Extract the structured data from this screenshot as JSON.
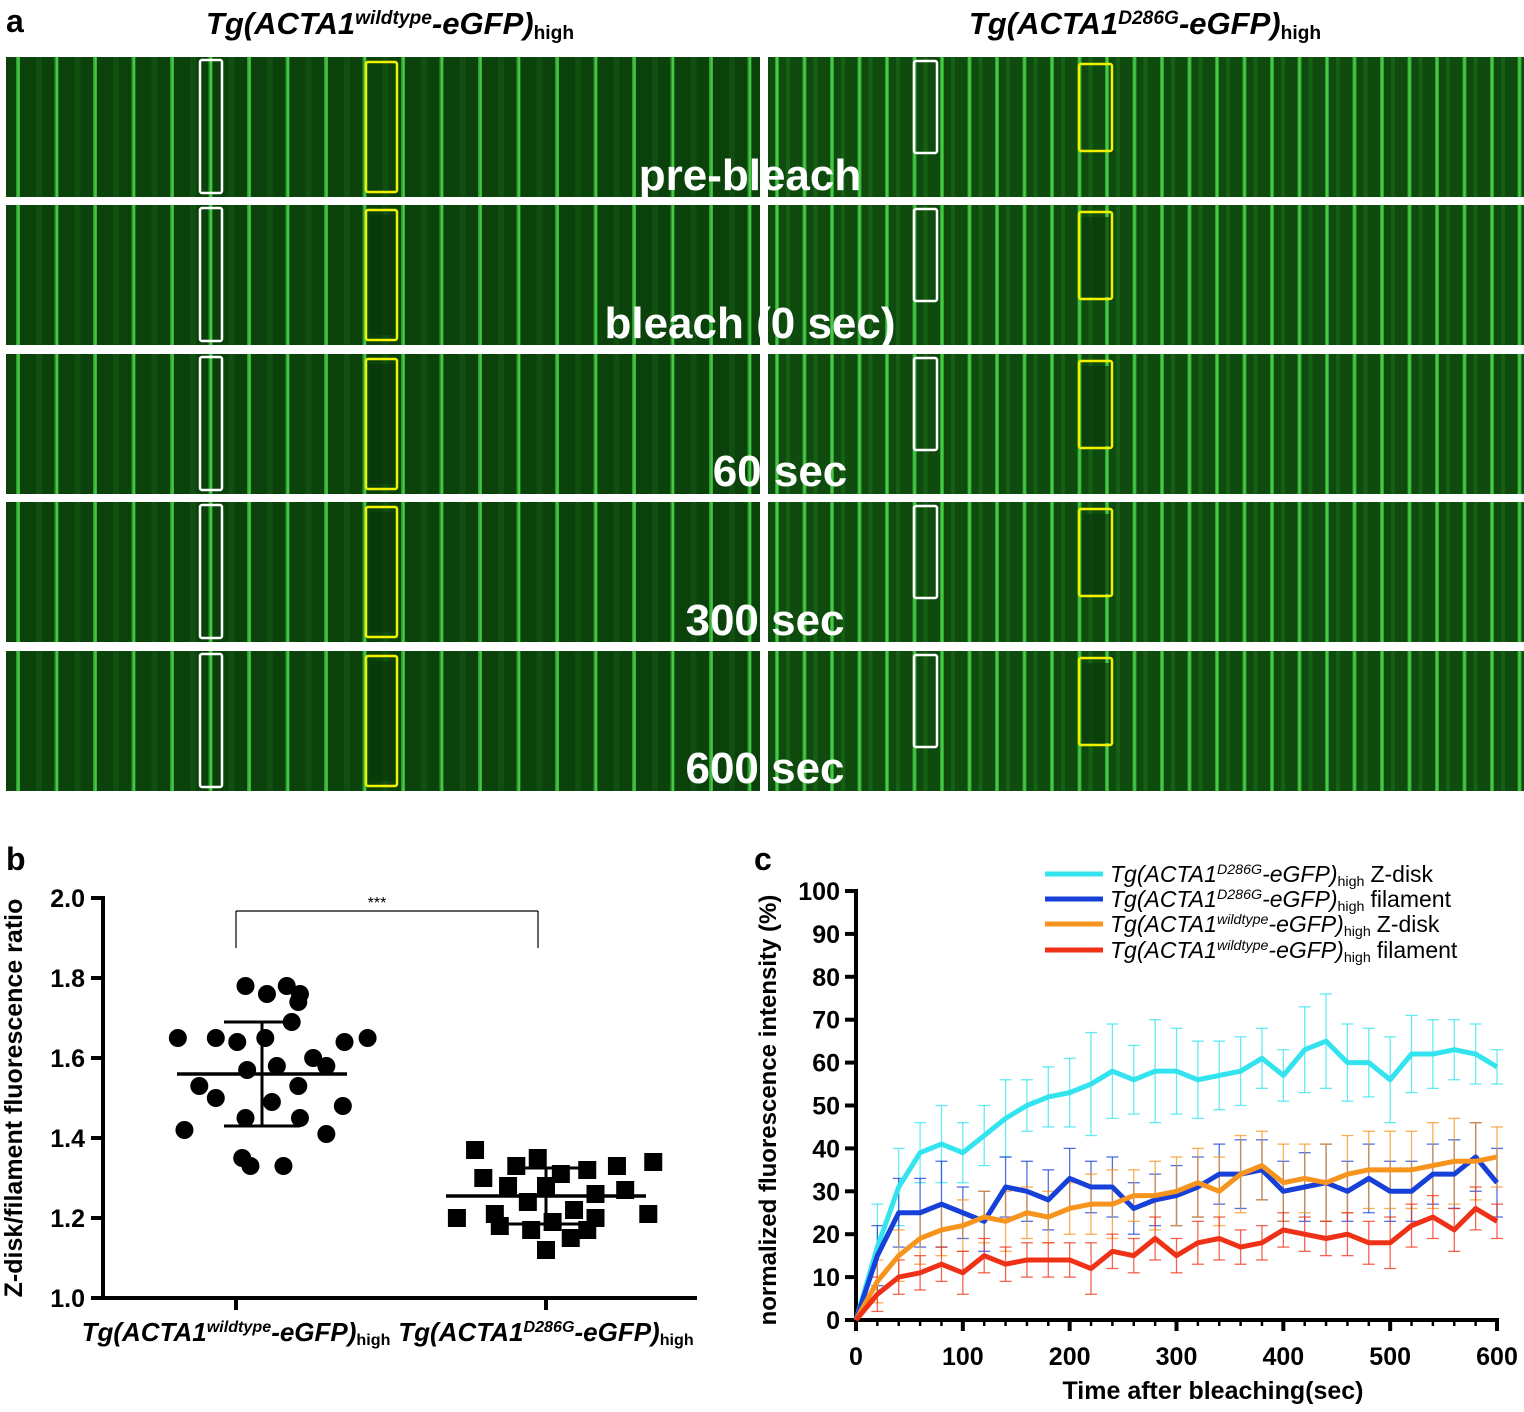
{
  "panel_a": {
    "label": "a",
    "columns": [
      {
        "prefix": "Tg(ACTA1",
        "sup": "wildtype",
        "suffix": "-eGFP)",
        "sub": "high"
      },
      {
        "prefix": "Tg(ACTA1",
        "sup": "D286G",
        "suffix": "-eGFP)",
        "sub": "high"
      }
    ],
    "rows": [
      "pre-bleach",
      "bleach (0 sec)",
      "60 sec",
      "300 sec",
      "600 sec"
    ],
    "colors": {
      "background": "#0a3f0a",
      "stripe": "#3bc23b",
      "roi_white": "#ffffff",
      "roi_yellow": "#f2f200"
    }
  },
  "panel_b": {
    "label": "b",
    "ylabel": "Z-disk/filament fluorescence ratio",
    "significance": "***",
    "chart_data": {
      "type": "scatter",
      "ylim": [
        1.0,
        2.0
      ],
      "yticks": [
        "1.0",
        "1.2",
        "1.4",
        "1.6",
        "1.8",
        "2.0"
      ],
      "categories": [
        {
          "prefix": "Tg(ACTA1",
          "sup": "wildtype",
          "suffix": "-eGFP)",
          "sub": "high"
        },
        {
          "prefix": "Tg(ACTA1",
          "sup": "D286G",
          "suffix": "-eGFP)",
          "sub": "high"
        }
      ],
      "series": [
        {
          "marker": "circle",
          "mean": 1.56,
          "sd": 0.13,
          "points": [
            [
              1.78,
              -0.1
            ],
            [
              1.78,
              0.15
            ],
            [
              1.76,
              0.03
            ],
            [
              1.76,
              0.23
            ],
            [
              1.74,
              0.22
            ],
            [
              1.69,
              0.18
            ],
            [
              1.65,
              -0.51
            ],
            [
              1.65,
              -0.28
            ],
            [
              1.65,
              0.02
            ],
            [
              1.65,
              0.64
            ],
            [
              1.64,
              -0.15
            ],
            [
              1.64,
              0.5
            ],
            [
              1.6,
              0.31
            ],
            [
              1.58,
              0.09
            ],
            [
              1.58,
              0.39
            ],
            [
              1.57,
              -0.09
            ],
            [
              1.53,
              -0.38
            ],
            [
              1.53,
              0.22
            ],
            [
              1.5,
              -0.28
            ],
            [
              1.49,
              0.06
            ],
            [
              1.48,
              0.49
            ],
            [
              1.45,
              -0.1
            ],
            [
              1.45,
              0.23
            ],
            [
              1.42,
              -0.47
            ],
            [
              1.41,
              0.39
            ],
            [
              1.35,
              -0.12
            ],
            [
              1.33,
              -0.07
            ],
            [
              1.33,
              0.13
            ]
          ]
        },
        {
          "marker": "square",
          "mean": 1.255,
          "sd": 0.07,
          "points": [
            [
              1.37,
              -0.43
            ],
            [
              1.35,
              -0.05
            ],
            [
              1.34,
              0.65
            ],
            [
              1.33,
              0.43
            ],
            [
              1.33,
              -0.18
            ],
            [
              1.32,
              0.25
            ],
            [
              1.31,
              0.09
            ],
            [
              1.3,
              -0.38
            ],
            [
              1.28,
              0.0
            ],
            [
              1.28,
              -0.23
            ],
            [
              1.27,
              0.48
            ],
            [
              1.26,
              0.3
            ],
            [
              1.24,
              -0.11
            ],
            [
              1.22,
              0.17
            ],
            [
              1.21,
              -0.31
            ],
            [
              1.21,
              0.62
            ],
            [
              1.2,
              -0.54
            ],
            [
              1.2,
              0.3
            ],
            [
              1.19,
              0.04
            ],
            [
              1.18,
              -0.28
            ],
            [
              1.17,
              0.25
            ],
            [
              1.17,
              -0.09
            ],
            [
              1.15,
              0.15
            ],
            [
              1.12,
              0.0
            ]
          ]
        }
      ]
    }
  },
  "panel_c": {
    "label": "c",
    "ylabel": "normalized fluorescence intensity (%)",
    "xlabel": "Time after bleaching(sec)",
    "chart_data": {
      "type": "line",
      "xlim": [
        0,
        600
      ],
      "ylim": [
        0,
        100
      ],
      "xticks": [
        0,
        100,
        200,
        300,
        400,
        500,
        600
      ],
      "yticks": [
        0,
        10,
        20,
        30,
        40,
        50,
        60,
        70,
        80,
        90,
        100
      ],
      "x": [
        0,
        20,
        40,
        60,
        80,
        100,
        120,
        140,
        160,
        180,
        200,
        220,
        240,
        260,
        280,
        300,
        320,
        340,
        360,
        380,
        400,
        420,
        440,
        460,
        480,
        500,
        520,
        540,
        560,
        580,
        600
      ],
      "series": [
        {
          "name_prefix": "Tg(ACTA1",
          "name_sup": "D286G",
          "name_suffix": "-eGFP)",
          "name_sub": "high",
          "name_tail": "Z-disk",
          "color": "#33e4ee",
          "values": [
            0,
            17,
            31,
            39,
            41,
            39,
            43,
            47,
            50,
            52,
            53,
            55,
            58,
            56,
            58,
            58,
            56,
            57,
            58,
            61,
            57,
            63,
            65,
            60,
            60,
            56,
            62,
            62,
            63,
            62,
            59
          ],
          "errors": [
            0,
            10,
            9,
            7,
            9,
            7,
            7,
            9,
            6,
            7,
            8,
            12,
            11,
            8,
            12,
            10,
            9,
            8,
            8,
            7,
            6,
            10,
            11,
            9,
            8,
            10,
            9,
            8,
            7,
            7,
            4
          ]
        },
        {
          "name_prefix": "Tg(ACTA1",
          "name_sup": "D286G",
          "name_suffix": "-eGFP)",
          "name_sub": "high",
          "name_tail": "filament",
          "color": "#1740d8",
          "values": [
            0,
            15,
            25,
            25,
            27,
            25,
            23,
            31,
            30,
            28,
            33,
            31,
            31,
            26,
            28,
            29,
            31,
            34,
            34,
            35,
            30,
            31,
            32,
            30,
            33,
            30,
            30,
            34,
            34,
            38,
            32
          ],
          "errors": [
            0,
            7,
            8,
            8,
            10,
            6,
            7,
            7,
            7,
            7,
            7,
            6,
            7,
            6,
            6,
            7,
            7,
            7,
            8,
            7,
            7,
            8,
            9,
            7,
            8,
            7,
            7,
            7,
            8,
            8,
            8
          ]
        },
        {
          "name_prefix": "Tg(ACTA1",
          "name_sup": "wildtype",
          "name_suffix": "-eGFP)",
          "name_sub": "high",
          "name_tail": "Z-disk",
          "color": "#f7941d",
          "values": [
            0,
            9,
            15,
            19,
            21,
            22,
            24,
            23,
            25,
            24,
            26,
            27,
            27,
            29,
            29,
            30,
            32,
            30,
            34,
            36,
            32,
            33,
            32,
            34,
            35,
            35,
            35,
            36,
            37,
            37,
            38
          ],
          "errors": [
            0,
            5,
            6,
            6,
            6,
            6,
            6,
            7,
            6,
            6,
            6,
            7,
            8,
            6,
            8,
            8,
            8,
            8,
            9,
            8,
            9,
            8,
            9,
            9,
            9,
            9,
            9,
            10,
            10,
            9,
            7
          ]
        },
        {
          "name_prefix": "Tg(ACTA1",
          "name_sup": "wildtype",
          "name_suffix": "-eGFP)",
          "name_sub": "high",
          "name_tail": "filament",
          "color": "#ef3217",
          "values": [
            0,
            6,
            10,
            11,
            13,
            11,
            15,
            13,
            14,
            14,
            14,
            12,
            16,
            15,
            19,
            15,
            18,
            19,
            17,
            18,
            21,
            20,
            19,
            20,
            18,
            18,
            22,
            24,
            21,
            26,
            23
          ],
          "errors": [
            0,
            4,
            4,
            4,
            4,
            5,
            4,
            4,
            4,
            4,
            4,
            6,
            4,
            4,
            5,
            4,
            5,
            5,
            4,
            4,
            4,
            4,
            4,
            5,
            5,
            6,
            5,
            5,
            5,
            5,
            4
          ]
        }
      ]
    }
  }
}
